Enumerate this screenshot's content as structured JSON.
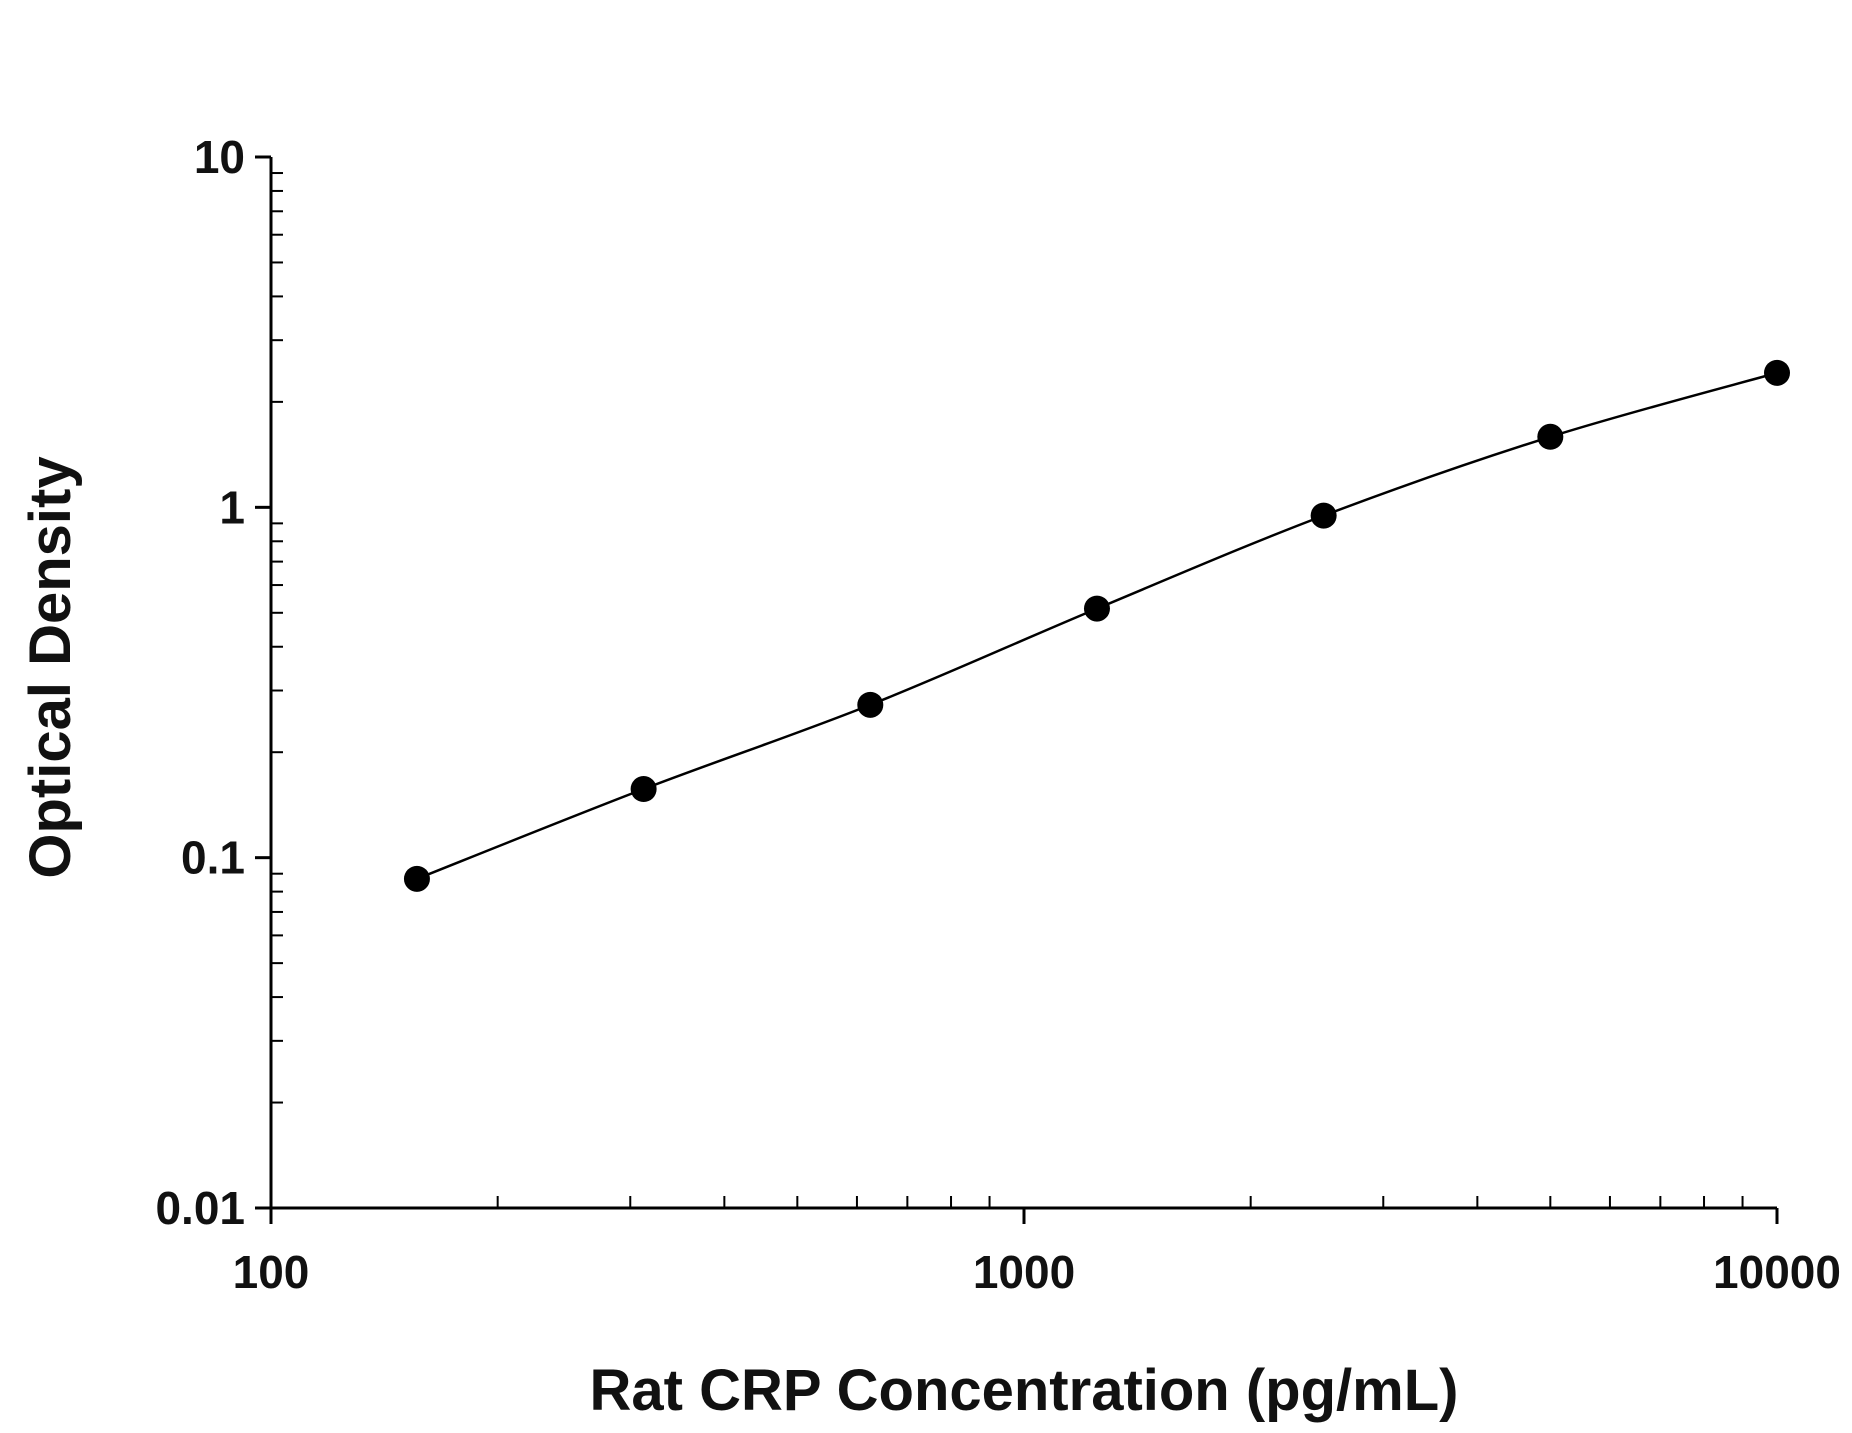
{
  "chart_data": {
    "type": "scatter",
    "title": "",
    "xlabel": "Rat CRP Concentration (pg/mL)",
    "ylabel": "Optical Density",
    "x_scale": "log",
    "y_scale": "log",
    "xlim": [
      100,
      10000
    ],
    "ylim": [
      0.01,
      10
    ],
    "x_ticks": [
      100,
      1000,
      10000
    ],
    "x_tick_labels": [
      "100",
      "1000",
      "10000"
    ],
    "y_ticks": [
      0.01,
      0.1,
      1,
      10
    ],
    "y_tick_labels": [
      "0.01",
      "0.1",
      "1",
      "10"
    ],
    "grid": false,
    "legend": "none",
    "series": [
      {
        "x": [
          156.25,
          312.5,
          625,
          1250,
          2500,
          5000,
          10000
        ],
        "y": [
          0.087,
          0.157,
          0.273,
          0.514,
          0.947,
          1.59,
          2.42
        ],
        "fit": "curve"
      }
    ],
    "colors": {
      "marker": "#000000",
      "line": "#000000",
      "axis": "#000000"
    }
  }
}
